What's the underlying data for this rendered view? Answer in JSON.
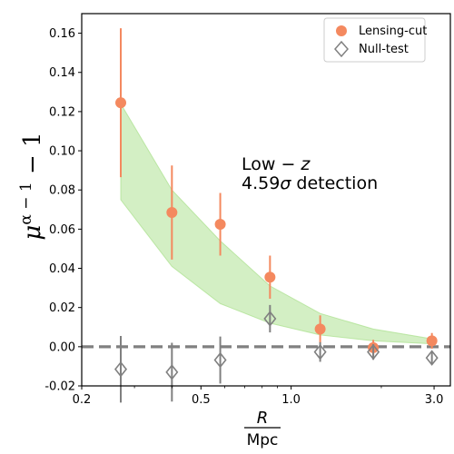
{
  "chart_data": {
    "type": "scatter",
    "title": "",
    "xscale": "log",
    "xlim": [
      0.2,
      3.4
    ],
    "ylim": [
      -0.02,
      0.17
    ],
    "xticks": [
      {
        "value": 0.2,
        "label": "0.2"
      },
      {
        "value": 0.5,
        "label": "0.5"
      },
      {
        "value": 1.0,
        "label": "1.0"
      },
      {
        "value": 3.0,
        "label": "3.0"
      }
    ],
    "yticks": [
      {
        "value": -0.02,
        "label": "-0.02"
      },
      {
        "value": 0.0,
        "label": "0.00"
      },
      {
        "value": 0.02,
        "label": "0.02"
      },
      {
        "value": 0.04,
        "label": "0.04"
      },
      {
        "value": 0.06,
        "label": "0.06"
      },
      {
        "value": 0.08,
        "label": "0.08"
      },
      {
        "value": 0.1,
        "label": "0.10"
      },
      {
        "value": 0.12,
        "label": "0.12"
      },
      {
        "value": 0.14,
        "label": "0.14"
      },
      {
        "value": 0.16,
        "label": "0.16"
      }
    ],
    "xlabel_numerator": "R",
    "xlabel_denominator": "Mpc",
    "ylabel_base": "μ",
    "ylabel_sup": "α − 1",
    "ylabel_tail": " − 1",
    "series": [
      {
        "name": "Lensing-cut",
        "color": "#f4895f",
        "marker": "circle",
        "x": [
          0.27,
          0.4,
          0.58,
          0.85,
          1.25,
          1.88,
          2.95
        ],
        "y": [
          0.1245,
          0.0685,
          0.0625,
          0.0355,
          0.009,
          -0.0005,
          0.003
        ],
        "err": [
          0.038,
          0.024,
          0.016,
          0.011,
          0.007,
          0.004,
          0.004
        ]
      },
      {
        "name": "Null-test",
        "color": "#808080",
        "marker": "diamond",
        "x": [
          0.27,
          0.4,
          0.58,
          0.85,
          1.25,
          1.88,
          2.95
        ],
        "y": [
          -0.0115,
          -0.013,
          -0.0068,
          0.0143,
          -0.0027,
          -0.0027,
          -0.0057
        ],
        "err": [
          0.017,
          0.015,
          0.012,
          0.007,
          0.005,
          0.004,
          0.003
        ]
      }
    ],
    "model_band": {
      "color": "#a8e08a",
      "x": [
        0.27,
        0.4,
        0.58,
        0.85,
        1.25,
        1.88,
        2.95
      ],
      "upper": [
        0.124,
        0.08,
        0.054,
        0.031,
        0.017,
        0.009,
        0.004
      ],
      "lower": [
        0.075,
        0.041,
        0.022,
        0.012,
        0.006,
        0.003,
        0.0015
      ]
    },
    "reference_line": {
      "y": 0.0,
      "color": "#808080",
      "style": "dashed"
    },
    "annotation": {
      "line1_prefix": "Low",
      "line1_op": " − ",
      "line1_var": "z",
      "line2_value": "4.59",
      "line2_sigma": "σ",
      "line2_rest": " detection"
    },
    "legend": {
      "placement": "top-right"
    }
  }
}
